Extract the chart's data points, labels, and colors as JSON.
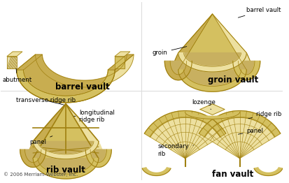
{
  "background_color": "#ffffff",
  "C1": "#ede0a0",
  "C2": "#d4c060",
  "C3": "#b09020",
  "C4": "#c8ad50",
  "C5": "#f0e8b8",
  "Cline": "#a08010",
  "title_fontsize": 8.5,
  "label_fontsize": 6.2,
  "copyright_text": "© 2006 Merriam-Webster, Inc.",
  "titles": [
    "barrel vault",
    "groin vault",
    "rib vault",
    "fan vault"
  ],
  "divider_color": "#dddddd"
}
